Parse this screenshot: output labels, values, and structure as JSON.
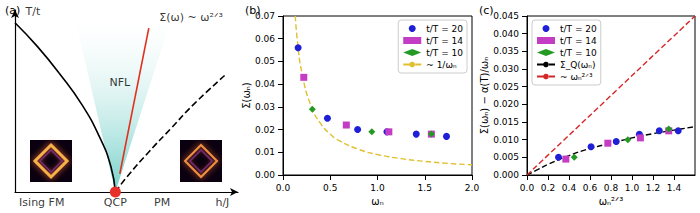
{
  "chart_data": [
    {
      "type": "phase_diagram",
      "title": "(a)",
      "x_label": "h/J",
      "y_label": "T/t",
      "xlim": [
        0,
        1
      ],
      "ylim": [
        0,
        1
      ],
      "tick_labels": false,
      "series": [
        {
          "type": "area",
          "color": "#5cc8c0",
          "x": [
            0.27,
            0.45,
            0.7
          ],
          "values": [
            0.95,
            0,
            0.95
          ]
        },
        {
          "type": "line",
          "color": "#000000",
          "line_style": "solid",
          "x": [
            0,
            0.1,
            0.2,
            0.3,
            0.38,
            0.43,
            0.45
          ],
          "values": [
            0.93,
            0.8,
            0.65,
            0.48,
            0.3,
            0.14,
            0
          ]
        },
        {
          "type": "line",
          "color": "#000000",
          "line_style": "dashed",
          "x": [
            0.45,
            0.5,
            0.6,
            0.7,
            0.8,
            0.94
          ],
          "values": [
            0,
            0.08,
            0.22,
            0.35,
            0.48,
            0.64
          ]
        },
        {
          "type": "line",
          "color": "#e0301e",
          "line_style": "solid",
          "x": [
            0.47,
            0.6
          ],
          "values": [
            0.1,
            0.9
          ]
        },
        {
          "type": "scatter",
          "color": "#e8302a",
          "marker": "circle",
          "x": [
            0.45
          ],
          "values": [
            0
          ]
        }
      ],
      "annotations": [
        {
          "text": "Ising FM",
          "x": 0.12,
          "y": -0.06
        },
        {
          "text": "QCP",
          "x": 0.45,
          "y": -0.06
        },
        {
          "text": "PM",
          "x": 0.66,
          "y": -0.06
        },
        {
          "text": "NFL",
          "x": 0.47,
          "y": 0.6
        },
        {
          "text": "Σ(ω) ~ ω²ᐟ³",
          "x": 0.79,
          "y": 0.96
        }
      ]
    },
    {
      "type": "scatter",
      "title": "(b)",
      "x_label": "ωₙ",
      "y_label": "Σ(ωₙ)",
      "xlim": [
        0,
        2
      ],
      "ylim": [
        0,
        0.07
      ],
      "xticks": [
        {
          "value": 0,
          "label": "0.0"
        },
        0.5,
        {
          "value": 1,
          "label": "1.0"
        },
        1.5,
        {
          "value": 2,
          "label": "2.0"
        }
      ],
      "yticks": [
        {
          "value": 0,
          "label": "0.00"
        },
        0.01,
        0.02,
        0.03,
        0.04,
        0.05,
        0.06,
        0.07
      ],
      "grid": false,
      "legend": "upper right",
      "series": [
        {
          "name": "t/T = 20",
          "type": "scatter",
          "color": "#1f1fd6",
          "marker": "circle",
          "x": [
            0.16,
            0.47,
            0.79,
            1.1,
            1.41,
            1.73
          ],
          "values": [
            0.056,
            0.025,
            0.02,
            0.019,
            0.018,
            0.017
          ]
        },
        {
          "name": "t/T = 14",
          "type": "scatter",
          "color": "#c43cc4",
          "marker": "square",
          "x": [
            0.22,
            0.67,
            1.12,
            1.57
          ],
          "values": [
            0.043,
            0.022,
            0.019,
            0.018
          ]
        },
        {
          "name": "t/T = 10",
          "type": "scatter",
          "color": "#249a24",
          "marker": "diamond",
          "x": [
            0.31,
            0.94,
            1.57
          ],
          "values": [
            0.029,
            0.019,
            0.018
          ]
        },
        {
          "name": "~ 1/ωₙ",
          "type": "line",
          "color": "#e0c030",
          "line_style": "dashed",
          "x": [
            0.13,
            0.15,
            0.2,
            0.3,
            0.4,
            0.5,
            0.6,
            0.8,
            1.0,
            1.25,
            1.5,
            1.75,
            2.0
          ],
          "values": [
            0.07,
            0.06,
            0.045,
            0.03,
            0.0225,
            0.018,
            0.015,
            0.0113,
            0.009,
            0.0072,
            0.006,
            0.0051,
            0.0045
          ]
        }
      ]
    },
    {
      "type": "scatter",
      "title": "(c)",
      "x_label": "ωₙ²ᐟ³",
      "y_label": "Σ(ωₙ) − α(T)/ωₙ",
      "xlim": [
        0,
        1.6
      ],
      "ylim": [
        0,
        0.045
      ],
      "xticks": [
        {
          "value": 0,
          "label": "0.0"
        },
        0.2,
        0.4,
        0.6,
        0.8,
        {
          "value": 1,
          "label": "1.0"
        },
        1.2,
        1.4
      ],
      "yticks": [
        {
          "value": 0,
          "label": "0.000"
        },
        {
          "value": 0.005,
          "label": "0.005"
        },
        {
          "value": 0.01,
          "label": "0.010"
        },
        {
          "value": 0.015,
          "label": "0.015"
        },
        {
          "value": 0.02,
          "label": "0.020"
        },
        {
          "value": 0.025,
          "label": "0.025"
        },
        {
          "value": 0.03,
          "label": "0.030"
        },
        {
          "value": 0.035,
          "label": "0.035"
        },
        {
          "value": 0.04,
          "label": "0.040"
        },
        {
          "value": 0.045,
          "label": "0.045"
        }
      ],
      "grid": false,
      "legend": "upper left",
      "series": [
        {
          "name": "t/T = 20",
          "type": "scatter",
          "color": "#1f1fd6",
          "marker": "circle",
          "x": [
            0.3,
            0.61,
            0.85,
            1.07,
            1.26,
            1.44
          ],
          "values": [
            0.005,
            0.008,
            0.0095,
            0.0115,
            0.0125,
            0.0125
          ]
        },
        {
          "name": "t/T = 14",
          "type": "scatter",
          "color": "#c43cc4",
          "marker": "square",
          "x": [
            0.37,
            0.77,
            1.08,
            1.35
          ],
          "values": [
            0.0045,
            0.009,
            0.0105,
            0.0125
          ]
        },
        {
          "name": "t/T = 10",
          "type": "scatter",
          "color": "#249a24",
          "marker": "diamond",
          "x": [
            0.45,
            0.96,
            1.35
          ],
          "values": [
            0.005,
            0.01,
            0.013
          ]
        },
        {
          "name": "Σ_Q(ωₙ)",
          "type": "line",
          "color": "#000000",
          "line_style": "dashed",
          "x": [
            0,
            0.1,
            0.2,
            0.4,
            0.6,
            0.8,
            1.0,
            1.2,
            1.4,
            1.6
          ],
          "values": [
            0,
            0.0015,
            0.003,
            0.0055,
            0.0075,
            0.009,
            0.0105,
            0.0117,
            0.0127,
            0.0137
          ]
        },
        {
          "name": "~ ωₙ²ᐟ³",
          "type": "line",
          "color": "#d62728",
          "line_style": "dashed",
          "x": [
            0,
            1.6
          ],
          "values": [
            0,
            0.045
          ]
        }
      ]
    }
  ]
}
